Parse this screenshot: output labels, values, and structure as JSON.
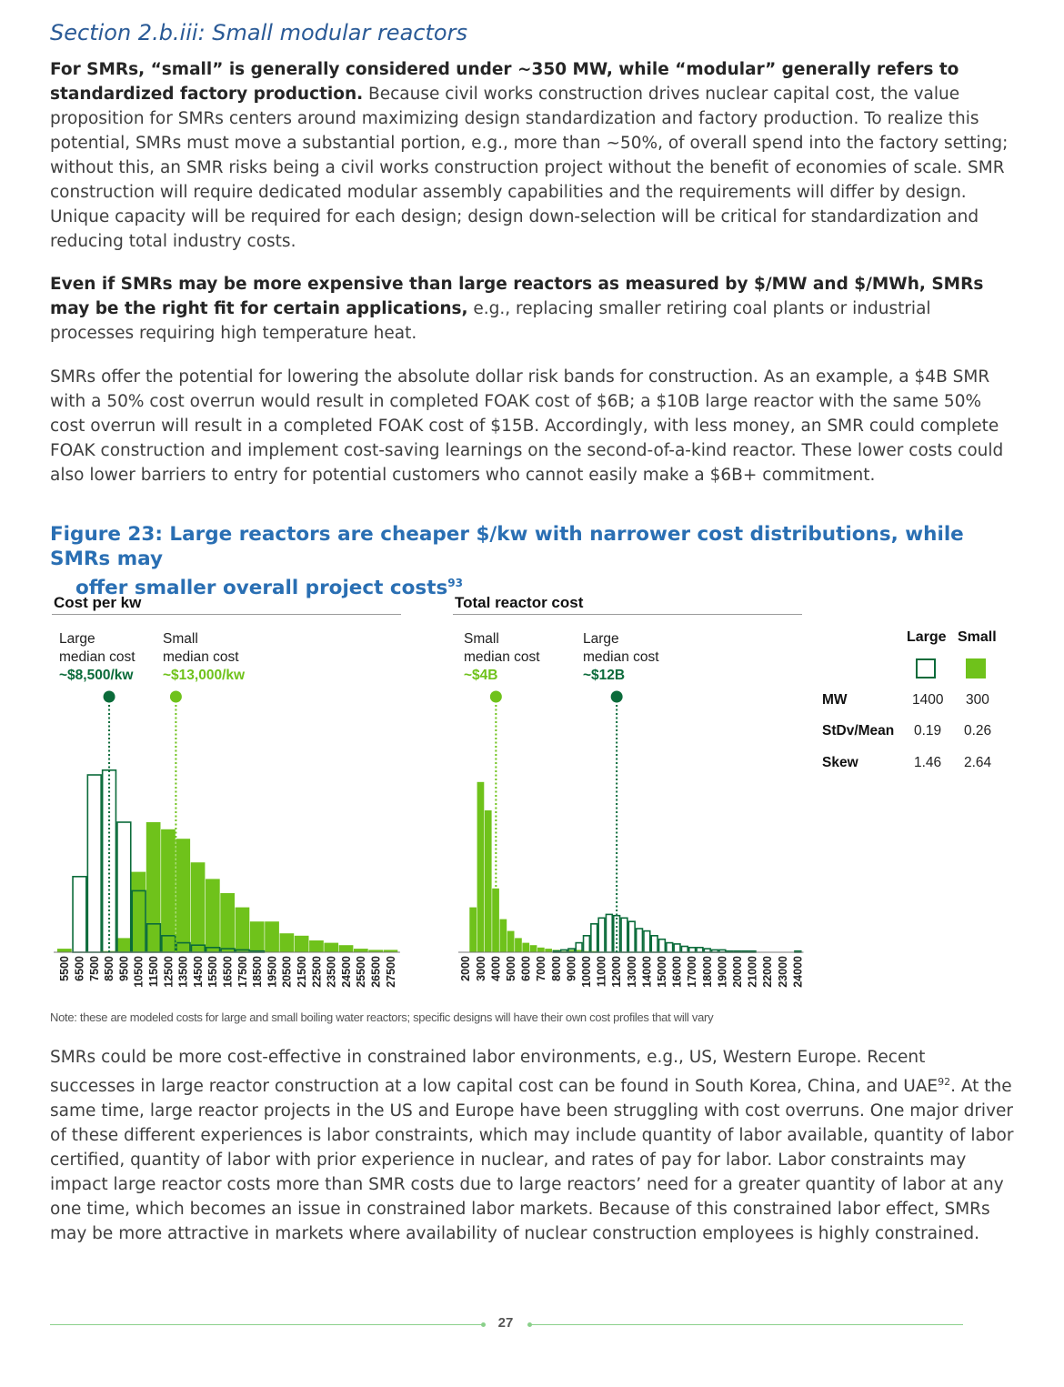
{
  "section": {
    "title": "Section 2.b.iii: Small modular reactors"
  },
  "paragraphs": {
    "p1_bold": "For SMRs, “small” is generally considered under ~350 MW, while “modular” generally refers to standardized factory production.",
    "p1_rest": " Because civil works construction drives nuclear capital cost, the value proposition for SMRs centers around maximizing design standardization and factory production. To realize this potential, SMRs must move a substantial portion, e.g., more than ~50%, of overall spend into the factory setting; without this, an SMR risks being a civil works construction project without the benefit of economies of scale. SMR construction will require dedicated modular assembly capabilities and the requirements will differ by design. Unique capacity will be required for each design; design down-selection will be critical for standardization and reducing total industry costs.",
    "p2_bold": "Even if SMRs may be more expensive than large reactors as measured by $/MW and $/MWh, SMRs may be the right fit for certain applications,",
    "p2_rest": " e.g., replacing smaller retiring coal plants or industrial processes requiring high temperature heat.",
    "p3": "SMRs offer the potential for lowering the absolute dollar risk bands for construction. As an example, a $4B SMR with a 50% cost overrun would result in completed FOAK cost of $6B; a $10B large reactor with the same 50% cost overrun will result in a completed FOAK cost of $15B. Accordingly, with less money, an SMR could complete FOAK construction and implement cost-saving learnings on the second-of-a-kind reactor. These lower costs could also lower barriers to entry for potential customers who cannot easily make a $6B+ commitment.",
    "p4_a": "SMRs could be more cost-effective in constrained labor environments, e.g., US, Western Europe. Recent successes in large reactor construction at a low capital cost can be found in South Korea, China, and UAE",
    "p4_sup": "92",
    "p4_b": ". At the same time, large reactor projects in the US and Europe have been struggling with cost overruns. One major driver of these different experiences is labor constraints, which may include quantity of labor available, quantity of labor certified, quantity of labor with prior experience in nuclear, and rates of pay for labor. Labor constraints may impact large reactor costs more than SMR costs due to large reactors’ need for a greater quantity of labor at any one time, which becomes an issue in constrained labor markets. Because of this constrained labor effect, SMRs may be more attractive in markets where availability of nuclear construction employees is highly constrained."
  },
  "figure": {
    "title_l1": "Figure 23: Large reactors are cheaper $/kw with narrower cost distributions, while SMRs may",
    "title_l2": "offer smaller overall project costs",
    "title_sup": "93",
    "note": "Note: these are modeled costs for large and small boiling water reactors; specific designs will have their own cost profiles that will vary"
  },
  "colors": {
    "large": "#0b6b3a",
    "small": "#6fc21b"
  },
  "chart_data": [
    {
      "type": "bar",
      "title": "Cost per kw",
      "categories": [
        "5500",
        "6500",
        "7500",
        "8500",
        "9500",
        "10500",
        "11500",
        "12500",
        "13500",
        "14500",
        "15500",
        "16500",
        "17500",
        "18500",
        "19500",
        "20500",
        "21500",
        "22500",
        "23500",
        "24500",
        "25500",
        "26500",
        "27500"
      ],
      "series": [
        {
          "name": "Large",
          "values": [
            0,
            0.32,
            0.75,
            0.77,
            0.55,
            0.26,
            0.12,
            0.07,
            0.04,
            0.03,
            0.02,
            0.015,
            0.01,
            0.005,
            0,
            0,
            0,
            0,
            0,
            0,
            0,
            0,
            0
          ]
        },
        {
          "name": "Small",
          "values": [
            0.015,
            0,
            0,
            0.005,
            0.06,
            0.34,
            0.55,
            0.52,
            0.48,
            0.38,
            0.31,
            0.25,
            0.19,
            0.13,
            0.13,
            0.08,
            0.07,
            0.05,
            0.04,
            0.03,
            0.015,
            0.01,
            0.01
          ]
        }
      ],
      "ylim": [
        0,
        1
      ],
      "annotations": [
        {
          "line1": "Large",
          "line2": "median cost",
          "value": "~$8,500/kw",
          "series": "Large",
          "x": 8500
        },
        {
          "line1": "Small",
          "line2": "median cost",
          "value": "~$13,000/kw",
          "series": "Small",
          "x": 13000
        }
      ]
    },
    {
      "type": "bar",
      "title": "Total reactor cost",
      "categories": [
        "2000",
        "2500",
        "3000",
        "3500",
        "4000",
        "4500",
        "5000",
        "5500",
        "6000",
        "6500",
        "7000",
        "7500",
        "8000",
        "8500",
        "9000",
        "9500",
        "10000",
        "10500",
        "11000",
        "11500",
        "12000",
        "12500",
        "13000",
        "13500",
        "14000",
        "14500",
        "15000",
        "15500",
        "16000",
        "16500",
        "17000",
        "17500",
        "18000",
        "18500",
        "19000",
        "19500",
        "20000",
        "20500",
        "21000",
        "21500",
        "22000",
        "22500",
        "23000",
        "23500",
        "24000"
      ],
      "tick_labels": [
        "2000",
        "3000",
        "4000",
        "5000",
        "6000",
        "7000",
        "8000",
        "9000",
        "10000",
        "11000",
        "12000",
        "13000",
        "14000",
        "15000",
        "16000",
        "17000",
        "18000",
        "19000",
        "20000",
        "21000",
        "22000",
        "23000",
        "24000"
      ],
      "series": [
        {
          "name": "Large",
          "values": [
            0,
            0,
            0,
            0,
            0,
            0,
            0,
            0,
            0,
            0,
            0,
            0,
            0.005,
            0.01,
            0.015,
            0.04,
            0.07,
            0.12,
            0.145,
            0.16,
            0.155,
            0.145,
            0.13,
            0.1,
            0.09,
            0.07,
            0.055,
            0.04,
            0.035,
            0.025,
            0.02,
            0.02,
            0.015,
            0.01,
            0.01,
            0.005,
            0.005,
            0.005,
            0.005,
            0,
            0,
            0,
            0,
            0,
            0.005
          ]
        },
        {
          "name": "Small",
          "values": [
            0,
            0.19,
            0.72,
            0.6,
            0.27,
            0.14,
            0.09,
            0.06,
            0.04,
            0.03,
            0.02,
            0.015,
            0.01,
            0.005,
            0.01,
            0.01,
            0.005,
            0.005,
            0,
            0,
            0,
            0,
            0,
            0,
            0,
            0,
            0,
            0,
            0,
            0,
            0,
            0,
            0,
            0,
            0,
            0,
            0,
            0,
            0,
            0,
            0,
            0,
            0,
            0,
            0.005
          ]
        }
      ],
      "ylim": [
        0,
        1
      ],
      "annotations": [
        {
          "line1": "Small",
          "line2": "median cost",
          "value": "~$4B",
          "series": "Small",
          "x": 4000
        },
        {
          "line1": "Large",
          "line2": "median cost",
          "value": "~$12B",
          "series": "Large",
          "x": 12000
        }
      ]
    }
  ],
  "legend": {
    "headers": [
      "Large",
      "Small"
    ],
    "rows": [
      {
        "label": "MW",
        "large": "1400",
        "small": "300"
      },
      {
        "label": "StDv/Mean",
        "large": "0.19",
        "small": "0.26"
      },
      {
        "label": "Skew",
        "large": "1.46",
        "small": "2.64"
      }
    ]
  },
  "footer": {
    "page": "27"
  }
}
